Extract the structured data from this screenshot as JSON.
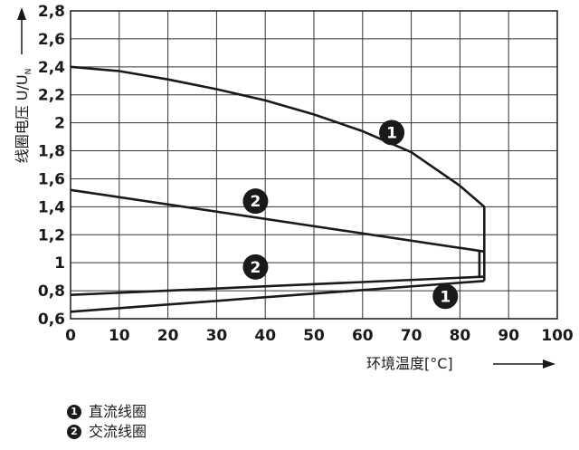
{
  "chart_data": {
    "type": "line",
    "xlabel": "环境温度[°C]",
    "ylabel": "线圈电压 U/U",
    "ylabel_subscript": "N",
    "xlim": [
      0,
      100
    ],
    "ylim": [
      0.6,
      2.8
    ],
    "x_ticks": [
      0,
      10,
      20,
      30,
      40,
      50,
      60,
      70,
      80,
      90,
      100
    ],
    "y_ticks": [
      0.6,
      0.8,
      1,
      1.2,
      1.4,
      1.6,
      1.8,
      2,
      2.2,
      2.4,
      2.6,
      2.8
    ],
    "y_tick_labels": [
      "0,6",
      "0,8",
      "1",
      "1,2",
      "1,4",
      "1,6",
      "1,8",
      "2",
      "2,2",
      "2,4",
      "2,6",
      "2,8"
    ],
    "grid": true,
    "series": [
      {
        "name": "直流线圈",
        "label": "1",
        "part": "upper",
        "points": [
          [
            0,
            2.4
          ],
          [
            10,
            2.37
          ],
          [
            20,
            2.31
          ],
          [
            30,
            2.24
          ],
          [
            40,
            2.16
          ],
          [
            50,
            2.06
          ],
          [
            60,
            1.94
          ],
          [
            70,
            1.79
          ],
          [
            80,
            1.55
          ],
          [
            85,
            1.4
          ]
        ]
      },
      {
        "name": "直流线圈",
        "label": "1",
        "part": "lower",
        "points": [
          [
            0,
            0.65
          ],
          [
            85,
            0.87
          ]
        ]
      },
      {
        "name": "交流线圈",
        "label": "2",
        "part": "upper",
        "points": [
          [
            0,
            1.52
          ],
          [
            85,
            1.08
          ]
        ]
      },
      {
        "name": "交流线圈",
        "label": "2",
        "part": "lower",
        "points": [
          [
            0,
            0.77
          ],
          [
            85,
            0.9
          ]
        ]
      }
    ],
    "vertical_segments": [
      {
        "label": "1",
        "x": 85,
        "y": [
          0.87,
          1.4
        ]
      },
      {
        "label": "2",
        "x": 84,
        "y": [
          0.9,
          1.08
        ]
      }
    ],
    "annotations": [
      {
        "text": "1",
        "x": 66,
        "y": 1.93
      },
      {
        "text": "2",
        "x": 38,
        "y": 1.44
      },
      {
        "text": "2",
        "x": 38,
        "y": 0.97
      },
      {
        "text": "1",
        "x": 77,
        "y": 0.76
      }
    ],
    "line_color": "#1a1a1a"
  },
  "legend": [
    {
      "marker": "1",
      "text": "直流线圈"
    },
    {
      "marker": "2",
      "text": "交流线圈"
    }
  ]
}
